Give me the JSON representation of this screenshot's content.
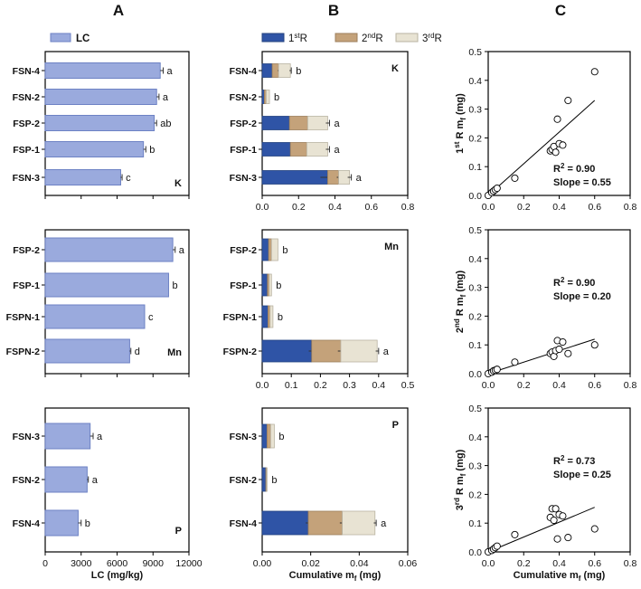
{
  "chart_data": [
    {
      "panel": "A",
      "element": "K",
      "type": "bar",
      "orientation": "horizontal",
      "legend": {
        "label": "LC",
        "color": "#9aaadd"
      },
      "categories": [
        "FSN-4",
        "FSN-2",
        "FSP-2",
        "FSP-1",
        "FSN-3"
      ],
      "values": [
        9600,
        9300,
        9100,
        8200,
        6300
      ],
      "errors": [
        250,
        200,
        200,
        200,
        120
      ],
      "letters": [
        "a",
        "a",
        "ab",
        "b",
        "c"
      ],
      "xlim": [
        0,
        12000
      ]
    },
    {
      "panel": "A",
      "element": "Mn",
      "type": "bar",
      "orientation": "horizontal",
      "categories": [
        "FSP-2",
        "FSP-1",
        "FSPN-1",
        "FSPN-2"
      ],
      "values": [
        10650,
        10300,
        8300,
        7050
      ],
      "errors": [
        200,
        0,
        0,
        100
      ],
      "letters": [
        "a",
        "b",
        "c",
        "d"
      ],
      "xlim": [
        0,
        12000
      ]
    },
    {
      "panel": "A",
      "element": "P",
      "type": "bar",
      "orientation": "horizontal",
      "categories": [
        "FSN-3",
        "FSN-2",
        "FSN-4"
      ],
      "values": [
        3750,
        3500,
        2750
      ],
      "errors": [
        250,
        100,
        250
      ],
      "letters": [
        "a",
        "a",
        "b"
      ],
      "xlim": [
        0,
        12000
      ],
      "x_ticks": [
        "0",
        "3000",
        "6000",
        "9000",
        "12000"
      ],
      "xlabel": "LC (mg/kg)"
    },
    {
      "panel": "B",
      "element": "K",
      "type": "bar",
      "orientation": "horizontal",
      "stacked": true,
      "legend": [
        {
          "base": "1",
          "sup": "st",
          "tail": "R",
          "color": "#2f54a6"
        },
        {
          "base": "2",
          "sup": "nd",
          "tail": "R",
          "color": "#c4a27a"
        },
        {
          "base": "3",
          "sup": "rd",
          "tail": "R",
          "color": "#e8e3d3"
        }
      ],
      "categories": [
        "FSN-4",
        "FSN-2",
        "FSP-2",
        "FSP-1",
        "FSN-3"
      ],
      "series": [
        {
          "name": "1st R",
          "values": [
            0.055,
            0.012,
            0.15,
            0.155,
            0.36
          ],
          "errors": [
            0,
            0,
            0,
            0,
            0.04
          ]
        },
        {
          "name": "2nd R",
          "values": [
            0.035,
            0.01,
            0.1,
            0.09,
            0.06
          ],
          "errors": [
            0.005,
            0,
            0,
            0,
            0.01
          ]
        },
        {
          "name": "3rd R",
          "values": [
            0.065,
            0.018,
            0.11,
            0.115,
            0.06
          ],
          "errors": [
            0.005,
            0,
            0.01,
            0.01,
            0.01
          ]
        }
      ],
      "letters": [
        "b",
        "b",
        "a",
        "a",
        "a"
      ],
      "xlim": [
        0,
        0.8
      ],
      "x_ticks": [
        "0.0",
        "0.2",
        "0.4",
        "0.6",
        "0.8"
      ]
    },
    {
      "panel": "B",
      "element": "Mn",
      "type": "bar",
      "orientation": "horizontal",
      "stacked": true,
      "categories": [
        "FSP-2",
        "FSP-1",
        "FSPN-1",
        "FSPN-2"
      ],
      "series": [
        {
          "name": "1st R",
          "values": [
            0.022,
            0.018,
            0.02,
            0.17
          ],
          "errors": [
            0,
            0,
            0,
            0.01
          ]
        },
        {
          "name": "2nd R",
          "values": [
            0.01,
            0.006,
            0.007,
            0.1
          ],
          "errors": [
            0,
            0,
            0,
            0.01
          ]
        },
        {
          "name": "3rd R",
          "values": [
            0.022,
            0.008,
            0.01,
            0.125
          ],
          "errors": [
            0,
            0,
            0,
            0.005
          ]
        }
      ],
      "letters": [
        "b",
        "b",
        "b",
        "a"
      ],
      "xlim": [
        0,
        0.5
      ],
      "x_ticks": [
        "0.0",
        "0.1",
        "0.2",
        "0.3",
        "0.4",
        "0.5"
      ]
    },
    {
      "panel": "B",
      "element": "P",
      "type": "bar",
      "orientation": "horizontal",
      "stacked": true,
      "categories": [
        "FSN-3",
        "FSN-2",
        "FSN-4"
      ],
      "series": [
        {
          "name": "1st R",
          "values": [
            0.002,
            0.0015,
            0.019
          ],
          "errors": [
            0,
            0,
            0.001
          ]
        },
        {
          "name": "2nd R",
          "values": [
            0.0015,
            0.0003,
            0.014
          ],
          "errors": [
            0,
            0,
            0.001
          ]
        },
        {
          "name": "3rd R",
          "values": [
            0.0015,
            0.0002,
            0.0135
          ],
          "errors": [
            0,
            0,
            0.0005
          ]
        }
      ],
      "letters": [
        "b",
        "b",
        "a"
      ],
      "xlim": [
        0,
        0.06
      ],
      "x_ticks": [
        "0.00",
        "0.02",
        "0.04",
        "0.06"
      ],
      "xlabel": "Cumulative m",
      "xlabel_sub": "f",
      "xlabel_tail": " (mg)"
    },
    {
      "panel": "C",
      "type": "scatter",
      "ylabel": {
        "pre": "1",
        "sup": "st",
        "mid": " R m",
        "sub": "f",
        "tail": " (mg)"
      },
      "r2_base": "R",
      "r2_sup": "2",
      "r2_val": " = 0.90",
      "slope_text": "Slope = 0.55",
      "x": [
        0.0,
        0.02,
        0.03,
        0.04,
        0.05,
        0.15,
        0.35,
        0.36,
        0.37,
        0.38,
        0.39,
        0.4,
        0.42,
        0.45,
        0.6
      ],
      "y": [
        0.0,
        0.01,
        0.015,
        0.02,
        0.025,
        0.06,
        0.155,
        0.16,
        0.17,
        0.15,
        0.265,
        0.18,
        0.175,
        0.33,
        0.43
      ],
      "fit": {
        "x": [
          0.0,
          0.6
        ],
        "y": [
          0.0,
          0.33
        ]
      },
      "xlim": [
        0,
        0.8
      ],
      "ylim": [
        0,
        0.5
      ],
      "x_ticks": [
        "0.0",
        "0.2",
        "0.4",
        "0.6",
        "0.8"
      ],
      "y_ticks": [
        "0.0",
        "0.1",
        "0.2",
        "0.3",
        "0.4",
        "0.5"
      ]
    },
    {
      "panel": "C",
      "type": "scatter",
      "ylabel": {
        "pre": "2",
        "sup": "nd",
        "mid": " R m",
        "sub": "f",
        "tail": " (mg)"
      },
      "r2_base": "R",
      "r2_sup": "2",
      "r2_val": " = 0.90",
      "slope_text": "Slope = 0.20",
      "x": [
        0.0,
        0.02,
        0.03,
        0.04,
        0.05,
        0.15,
        0.35,
        0.36,
        0.37,
        0.38,
        0.39,
        0.4,
        0.42,
        0.45,
        0.6
      ],
      "y": [
        0.0,
        0.005,
        0.01,
        0.012,
        0.015,
        0.04,
        0.07,
        0.075,
        0.06,
        0.08,
        0.115,
        0.085,
        0.11,
        0.07,
        0.1
      ],
      "fit": {
        "x": [
          0.0,
          0.6
        ],
        "y": [
          0.0,
          0.12
        ]
      },
      "xlim": [
        0,
        0.8
      ],
      "ylim": [
        0,
        0.5
      ],
      "x_ticks": [
        "0.0",
        "0.2",
        "0.4",
        "0.6",
        "0.8"
      ],
      "y_ticks": [
        "0.0",
        "0.1",
        "0.2",
        "0.3",
        "0.4",
        "0.5"
      ]
    },
    {
      "panel": "C",
      "type": "scatter",
      "ylabel": {
        "pre": "3",
        "sup": "rd",
        "mid": " R m",
        "sub": "f",
        "tail": " (mg)"
      },
      "r2_base": "R",
      "r2_sup": "2",
      "r2_val": " = 0.73",
      "slope_text": "Slope = 0.25",
      "x": [
        0.0,
        0.02,
        0.03,
        0.04,
        0.05,
        0.15,
        0.35,
        0.36,
        0.37,
        0.38,
        0.39,
        0.4,
        0.42,
        0.45,
        0.6
      ],
      "y": [
        0.0,
        0.005,
        0.01,
        0.015,
        0.02,
        0.06,
        0.12,
        0.15,
        0.11,
        0.15,
        0.045,
        0.13,
        0.125,
        0.05,
        0.08
      ],
      "fit": {
        "x": [
          0.0,
          0.6
        ],
        "y": [
          0.0,
          0.155
        ]
      },
      "xlim": [
        0,
        0.8
      ],
      "ylim": [
        0,
        0.5
      ],
      "x_ticks": [
        "0.0",
        "0.2",
        "0.4",
        "0.6",
        "0.8"
      ],
      "y_ticks": [
        "0.0",
        "0.1",
        "0.2",
        "0.3",
        "0.4",
        "0.5"
      ],
      "xlabel": "Cumulative m",
      "xlabel_sub": "f",
      "xlabel_tail": " (mg)"
    }
  ]
}
